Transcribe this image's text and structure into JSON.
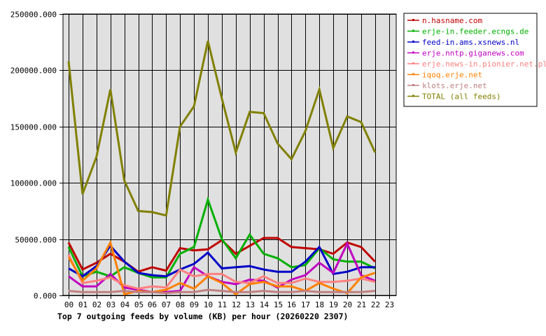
{
  "chart_data": {
    "type": "line",
    "title": "Top 7 outgoing feeds by volume (KB) per hour (20260220 2307)",
    "xlabel": "",
    "ylabel": "",
    "ylim": [
      0,
      250000
    ],
    "yticks": [
      "0.000",
      "50000.000",
      "100000.000",
      "150000.000",
      "200000.000",
      "250000.000"
    ],
    "ytick_values": [
      0,
      50000,
      100000,
      150000,
      200000,
      250000
    ],
    "categories": [
      "00",
      "01",
      "02",
      "03",
      "04",
      "05",
      "06",
      "07",
      "08",
      "09",
      "10",
      "11",
      "12",
      "13",
      "14",
      "15",
      "16",
      "17",
      "18",
      "19",
      "20",
      "21",
      "22",
      "23"
    ],
    "grid": true,
    "legend_position": "right",
    "series": [
      {
        "name": "n.hasname.com",
        "color": "#c00000",
        "values": [
          47000,
          23000,
          29000,
          37000,
          30000,
          21000,
          25000,
          22000,
          42000,
          40000,
          41000,
          49000,
          37000,
          44000,
          51000,
          51000,
          43000,
          42000,
          41000,
          37000,
          47000,
          43000,
          30000
        ]
      },
      {
        "name": "erje-in.feeder.ecngs.de",
        "color": "#00b000",
        "values": [
          43000,
          17000,
          21000,
          17000,
          25000,
          20000,
          16000,
          16000,
          37000,
          43000,
          85000,
          50000,
          33000,
          54000,
          37000,
          33000,
          25000,
          27000,
          42000,
          32000,
          30000,
          30000,
          24000
        ]
      },
      {
        "name": "feed-in.ams.xsnews.nl",
        "color": "#0000c8",
        "values": [
          24000,
          17000,
          26000,
          44000,
          30000,
          20000,
          18000,
          17000,
          23000,
          28000,
          38000,
          24000,
          25000,
          26000,
          23000,
          21000,
          21000,
          30000,
          43000,
          19000,
          21000,
          25000,
          25000
        ]
      },
      {
        "name": "erje.nntp.giganews.com",
        "color": "#c000c0",
        "values": [
          17000,
          8000,
          8000,
          19000,
          7000,
          5000,
          3000,
          3000,
          4000,
          25000,
          17000,
          12000,
          10000,
          14000,
          13000,
          7000,
          14000,
          18000,
          29000,
          20000,
          46000,
          18000,
          13000
        ]
      },
      {
        "name": "erje.news-in.pionier.net.pl",
        "color": "#ff8080",
        "values": [
          36000,
          11000,
          13000,
          16000,
          9000,
          6000,
          8000,
          7000,
          23000,
          17000,
          19000,
          19000,
          12000,
          11000,
          17000,
          11000,
          11000,
          15000,
          12000,
          12000,
          13000,
          15000,
          12000
        ]
      },
      {
        "name": "iqoq.erje.net",
        "color": "#ff8000",
        "values": [
          34000,
          13000,
          24000,
          47000,
          1000,
          4000,
          3000,
          5000,
          11000,
          6000,
          17000,
          11000,
          1000,
          10000,
          12000,
          8000,
          8000,
          4000,
          11000,
          6000,
          2000,
          16000,
          20000
        ]
      },
      {
        "name": "klots.erje.net",
        "color": "#c08080",
        "values": [
          4000,
          3000,
          3000,
          3000,
          4000,
          3000,
          3000,
          2000,
          3000,
          3000,
          5000,
          4000,
          3000,
          3000,
          4000,
          3000,
          3000,
          4000,
          3000,
          3000,
          3000,
          3000,
          4000
        ]
      },
      {
        "name": "TOTAL (all feeds)",
        "color": "#808000",
        "values": [
          208000,
          90000,
          123000,
          183000,
          102000,
          75000,
          74000,
          71000,
          150000,
          168000,
          226000,
          175000,
          127000,
          163000,
          162000,
          135000,
          121000,
          146000,
          183000,
          131000,
          159000,
          154000,
          127000
        ]
      }
    ]
  },
  "colors": {
    "plot_background": "#e0e0e0",
    "grid": "#000000",
    "page_background": "#ffffff"
  }
}
